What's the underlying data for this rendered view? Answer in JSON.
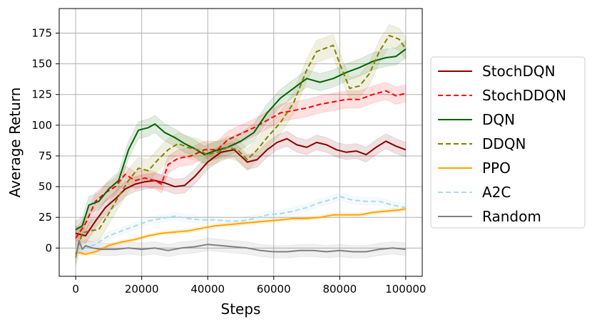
{
  "chart_data": {
    "type": "line",
    "xlabel": "Steps",
    "ylabel": "Average Return",
    "xlim": [
      -5000,
      105000
    ],
    "ylim": [
      -23,
      195
    ],
    "xticks": [
      0,
      20000,
      40000,
      60000,
      80000,
      100000
    ],
    "yticks": [
      0,
      25,
      50,
      75,
      100,
      125,
      150,
      175
    ],
    "grid": true,
    "legend_position": "right",
    "series": [
      {
        "name": "StochDQN",
        "color": "#8b0000",
        "dash": "solid",
        "band": 6,
        "points": [
          [
            0,
            12
          ],
          [
            3000,
            10
          ],
          [
            6000,
            22
          ],
          [
            9000,
            33
          ],
          [
            12000,
            40
          ],
          [
            15000,
            48
          ],
          [
            18000,
            52
          ],
          [
            21000,
            54
          ],
          [
            24000,
            55
          ],
          [
            27000,
            53
          ],
          [
            30000,
            50
          ],
          [
            33000,
            51
          ],
          [
            36000,
            58
          ],
          [
            40000,
            70
          ],
          [
            44000,
            78
          ],
          [
            48000,
            80
          ],
          [
            52000,
            70
          ],
          [
            55000,
            72
          ],
          [
            58000,
            80
          ],
          [
            61000,
            86
          ],
          [
            64000,
            89
          ],
          [
            67000,
            84
          ],
          [
            70000,
            82
          ],
          [
            73000,
            86
          ],
          [
            76000,
            84
          ],
          [
            79000,
            80
          ],
          [
            82000,
            78
          ],
          [
            85000,
            79
          ],
          [
            88000,
            76
          ],
          [
            91000,
            82
          ],
          [
            94000,
            87
          ],
          [
            97000,
            83
          ],
          [
            100000,
            80
          ]
        ]
      },
      {
        "name": "StochDDQN",
        "color": "#ff0000",
        "dash": "dashed",
        "band": 7,
        "points": [
          [
            0,
            8
          ],
          [
            3000,
            20
          ],
          [
            6000,
            38
          ],
          [
            9000,
            45
          ],
          [
            12000,
            50
          ],
          [
            15000,
            60
          ],
          [
            18000,
            55
          ],
          [
            21000,
            57
          ],
          [
            24000,
            55
          ],
          [
            26000,
            52
          ],
          [
            28000,
            68
          ],
          [
            31000,
            73
          ],
          [
            35000,
            75
          ],
          [
            39000,
            80
          ],
          [
            43000,
            80
          ],
          [
            46000,
            88
          ],
          [
            50000,
            93
          ],
          [
            54000,
            98
          ],
          [
            58000,
            104
          ],
          [
            62000,
            110
          ],
          [
            66000,
            112
          ],
          [
            70000,
            114
          ],
          [
            74000,
            117
          ],
          [
            78000,
            119
          ],
          [
            82000,
            121
          ],
          [
            86000,
            121
          ],
          [
            90000,
            125
          ],
          [
            94000,
            128
          ],
          [
            97000,
            124
          ],
          [
            100000,
            126
          ]
        ]
      },
      {
        "name": "DQN",
        "color": "#006400",
        "dash": "solid",
        "band": 7,
        "points": [
          [
            0,
            15
          ],
          [
            2000,
            18
          ],
          [
            4000,
            35
          ],
          [
            7000,
            38
          ],
          [
            10000,
            48
          ],
          [
            13000,
            55
          ],
          [
            16000,
            80
          ],
          [
            19000,
            96
          ],
          [
            22000,
            98
          ],
          [
            24000,
            101
          ],
          [
            27000,
            94
          ],
          [
            30000,
            90
          ],
          [
            33000,
            85
          ],
          [
            36000,
            81
          ],
          [
            39000,
            76
          ],
          [
            42000,
            79
          ],
          [
            46000,
            82
          ],
          [
            50000,
            87
          ],
          [
            54000,
            94
          ],
          [
            58000,
            110
          ],
          [
            62000,
            122
          ],
          [
            66000,
            130
          ],
          [
            70000,
            138
          ],
          [
            74000,
            135
          ],
          [
            78000,
            138
          ],
          [
            82000,
            143
          ],
          [
            86000,
            147
          ],
          [
            90000,
            152
          ],
          [
            94000,
            155
          ],
          [
            97000,
            156
          ],
          [
            100000,
            162
          ]
        ]
      },
      {
        "name": "DDQN",
        "color": "#808000",
        "dash": "dashed",
        "band": 9,
        "points": [
          [
            0,
            -5
          ],
          [
            2000,
            12
          ],
          [
            4000,
            14
          ],
          [
            7000,
            15
          ],
          [
            10000,
            28
          ],
          [
            13000,
            42
          ],
          [
            16000,
            55
          ],
          [
            19000,
            65
          ],
          [
            22000,
            63
          ],
          [
            25000,
            72
          ],
          [
            28000,
            80
          ],
          [
            31000,
            85
          ],
          [
            34000,
            82
          ],
          [
            37000,
            80
          ],
          [
            40000,
            76
          ],
          [
            43000,
            78
          ],
          [
            46000,
            82
          ],
          [
            49000,
            80
          ],
          [
            52000,
            72
          ],
          [
            55000,
            80
          ],
          [
            58000,
            90
          ],
          [
            62000,
            102
          ],
          [
            66000,
            118
          ],
          [
            70000,
            145
          ],
          [
            73000,
            160
          ],
          [
            76000,
            163
          ],
          [
            78000,
            165
          ],
          [
            80000,
            150
          ],
          [
            83000,
            130
          ],
          [
            86000,
            132
          ],
          [
            89000,
            142
          ],
          [
            92000,
            160
          ],
          [
            95000,
            173
          ],
          [
            98000,
            170
          ],
          [
            100000,
            162
          ]
        ]
      },
      {
        "name": "PPO",
        "color": "#ffa500",
        "dash": "solid",
        "band": 1.5,
        "points": [
          [
            0,
            -3
          ],
          [
            3000,
            -5
          ],
          [
            6000,
            -3
          ],
          [
            10000,
            2
          ],
          [
            14000,
            5
          ],
          [
            18000,
            7
          ],
          [
            22000,
            10
          ],
          [
            26000,
            12
          ],
          [
            30000,
            13
          ],
          [
            34000,
            14
          ],
          [
            38000,
            16
          ],
          [
            42000,
            18
          ],
          [
            46000,
            19
          ],
          [
            50000,
            20
          ],
          [
            54000,
            21
          ],
          [
            58000,
            22
          ],
          [
            62000,
            23
          ],
          [
            66000,
            24
          ],
          [
            70000,
            24
          ],
          [
            74000,
            25
          ],
          [
            78000,
            27
          ],
          [
            82000,
            27
          ],
          [
            86000,
            27
          ],
          [
            90000,
            29
          ],
          [
            94000,
            30
          ],
          [
            98000,
            31
          ],
          [
            100000,
            32
          ]
        ]
      },
      {
        "name": "A2C",
        "color": "#add8e6",
        "dash": "dashed",
        "band": 3,
        "points": [
          [
            0,
            -2
          ],
          [
            3000,
            0
          ],
          [
            6000,
            3
          ],
          [
            10000,
            10
          ],
          [
            14000,
            14
          ],
          [
            18000,
            18
          ],
          [
            22000,
            22
          ],
          [
            26000,
            24
          ],
          [
            30000,
            26
          ],
          [
            34000,
            24
          ],
          [
            38000,
            23
          ],
          [
            42000,
            23
          ],
          [
            46000,
            22
          ],
          [
            50000,
            22
          ],
          [
            54000,
            24
          ],
          [
            58000,
            27
          ],
          [
            62000,
            28
          ],
          [
            66000,
            30
          ],
          [
            70000,
            33
          ],
          [
            74000,
            37
          ],
          [
            78000,
            40
          ],
          [
            80000,
            42
          ],
          [
            84000,
            39
          ],
          [
            88000,
            38
          ],
          [
            92000,
            38
          ],
          [
            96000,
            35
          ],
          [
            100000,
            33
          ]
        ]
      },
      {
        "name": "Random",
        "color": "#808080",
        "dash": "solid",
        "band": 5,
        "points": [
          [
            0,
            -8
          ],
          [
            1000,
            6
          ],
          [
            2000,
            -1
          ],
          [
            3000,
            2
          ],
          [
            5000,
            0
          ],
          [
            8000,
            -1
          ],
          [
            12000,
            -1
          ],
          [
            16000,
            0
          ],
          [
            20000,
            -1
          ],
          [
            24000,
            0
          ],
          [
            28000,
            -2
          ],
          [
            32000,
            0
          ],
          [
            36000,
            1
          ],
          [
            40000,
            3
          ],
          [
            44000,
            2
          ],
          [
            48000,
            1
          ],
          [
            52000,
            0
          ],
          [
            56000,
            -2
          ],
          [
            60000,
            -3
          ],
          [
            64000,
            -3
          ],
          [
            68000,
            -2
          ],
          [
            72000,
            -2
          ],
          [
            76000,
            -3
          ],
          [
            80000,
            -2
          ],
          [
            84000,
            -3
          ],
          [
            88000,
            -3
          ],
          [
            92000,
            -1
          ],
          [
            96000,
            0
          ],
          [
            100000,
            -1
          ]
        ]
      }
    ]
  }
}
